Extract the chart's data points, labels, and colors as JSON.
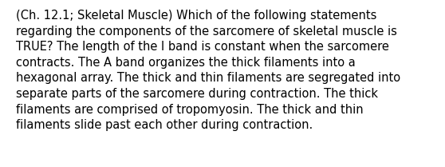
{
  "lines": [
    "(Ch. 12.1; Skeletal Muscle) Which of the following statements",
    "regarding the components of the sarcomere of skeletal muscle is",
    "TRUE? The length of the I band is constant when the sarcomere",
    "contracts. The A band organizes the thick filaments into a",
    "hexagonal array. The thick and thin filaments are segregated into",
    "separate parts of the sarcomere during contraction. The thick",
    "filaments are comprised of tropomyosin. The thick and thin",
    "filaments slide past each other during contraction."
  ],
  "background_color": "#ffffff",
  "text_color": "#000000",
  "font_size": 10.5,
  "fig_width": 5.58,
  "fig_height": 2.09,
  "dpi": 100
}
